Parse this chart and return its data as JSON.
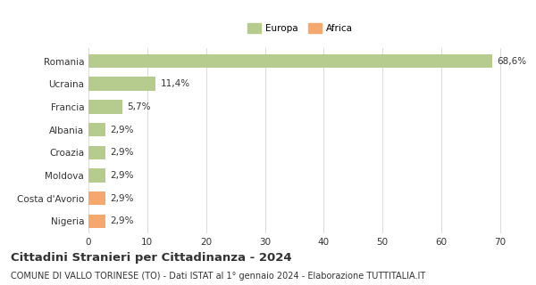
{
  "categories": [
    "Nigeria",
    "Costa d'Avorio",
    "Moldova",
    "Croazia",
    "Albania",
    "Francia",
    "Ucraina",
    "Romania"
  ],
  "values": [
    2.9,
    2.9,
    2.9,
    2.9,
    2.9,
    5.7,
    11.4,
    68.6
  ],
  "colors": [
    "#f5a86e",
    "#f5a86e",
    "#b5cc8e",
    "#b5cc8e",
    "#b5cc8e",
    "#b5cc8e",
    "#b5cc8e",
    "#b5cc8e"
  ],
  "labels": [
    "2,9%",
    "2,9%",
    "2,9%",
    "2,9%",
    "2,9%",
    "5,7%",
    "11,4%",
    "68,6%"
  ],
  "legend": [
    {
      "label": "Europa",
      "color": "#b5cc8e"
    },
    {
      "label": "Africa",
      "color": "#f5a86e"
    }
  ],
  "xlim": [
    0,
    72
  ],
  "xticks": [
    0,
    10,
    20,
    30,
    40,
    50,
    60,
    70
  ],
  "title": "Cittadini Stranieri per Cittadinanza - 2024",
  "subtitle": "COMUNE DI VALLO TORINESE (TO) - Dati ISTAT al 1° gennaio 2024 - Elaborazione TUTTITALIA.IT",
  "bar_height": 0.6,
  "background_color": "#ffffff",
  "grid_color": "#dddddd",
  "text_color": "#333333",
  "label_fontsize": 7.5,
  "tick_fontsize": 7.5,
  "title_fontsize": 9.5,
  "subtitle_fontsize": 7.0
}
